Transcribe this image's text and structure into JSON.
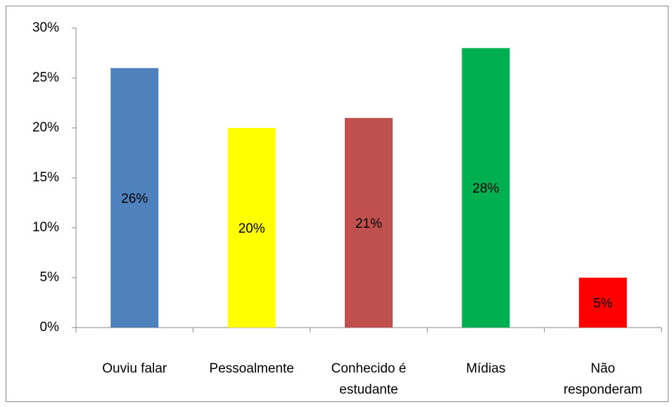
{
  "chart_data": {
    "type": "bar",
    "categories": [
      "Ouviu falar",
      "Pessoalmente",
      "Conhecido é estudante",
      "Mídias",
      "Não responderam"
    ],
    "values": [
      26,
      20,
      21,
      28,
      5
    ],
    "value_labels": [
      "26%",
      "20%",
      "21%",
      "28%",
      "5%"
    ],
    "colors": [
      "#4f81bd",
      "#ffff00",
      "#c0504d",
      "#00b050",
      "#ff0000"
    ],
    "ylim": [
      0,
      30
    ],
    "yticks": [
      {
        "value": 0,
        "label": "0%"
      },
      {
        "value": 5,
        "label": "5%"
      },
      {
        "value": 10,
        "label": "10%"
      },
      {
        "value": 15,
        "label": "15%"
      },
      {
        "value": 20,
        "label": "20%"
      },
      {
        "value": 25,
        "label": "25%"
      },
      {
        "value": 30,
        "label": "30%"
      }
    ],
    "grid": false
  }
}
